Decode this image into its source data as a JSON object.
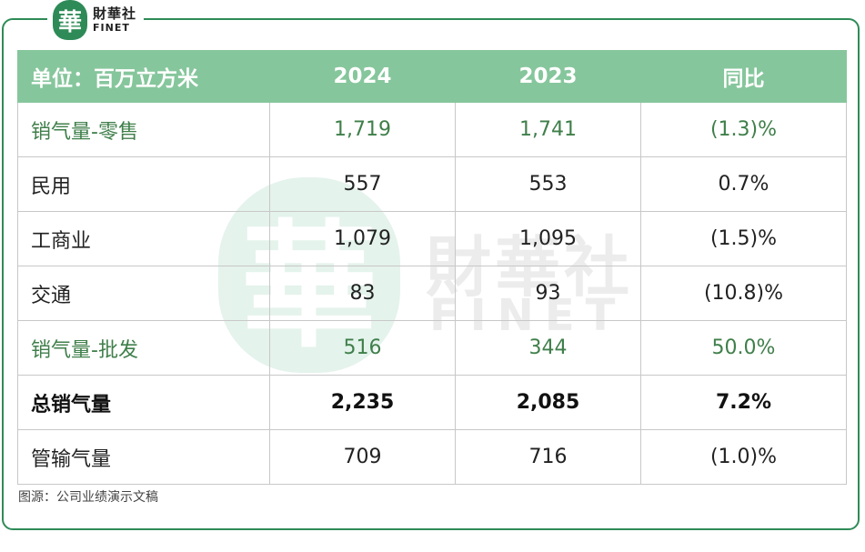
{
  "logo": {
    "mark": "華",
    "cn": "財華社",
    "en": "FINET"
  },
  "watermark": {
    "mark": "華",
    "cn": "財華社",
    "en": "FINET"
  },
  "table": {
    "headers": [
      "单位：百万立方米",
      "2024",
      "2023",
      "同比"
    ],
    "rows": [
      {
        "style": "green",
        "cells": [
          "销气量-零售",
          "1,719",
          "1,741",
          "(1.3)%"
        ]
      },
      {
        "style": "normal",
        "cells": [
          "民用",
          "557",
          "553",
          "0.7%"
        ]
      },
      {
        "style": "normal",
        "cells": [
          "工商业",
          "1,079",
          "1,095",
          "(1.5)%"
        ]
      },
      {
        "style": "normal",
        "cells": [
          "交通",
          "83",
          "93",
          "(10.8)%"
        ]
      },
      {
        "style": "green",
        "cells": [
          "销气量-批发",
          "516",
          "344",
          "50.0%"
        ]
      },
      {
        "style": "bold",
        "cells": [
          "总销气量",
          "2,235",
          "2,085",
          "7.2%"
        ]
      },
      {
        "style": "normal",
        "cells": [
          "管输气量",
          "709",
          "716",
          "(1.0)%"
        ]
      }
    ]
  },
  "source": "图源：公司业绩演示文稿",
  "colors": {
    "brand_green": "#2e8b57",
    "header_bg": "#86c69c",
    "highlight_text": "#3f7f4a"
  }
}
